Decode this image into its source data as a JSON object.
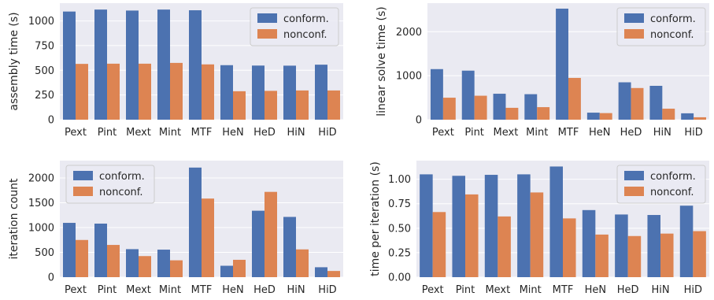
{
  "colors": {
    "conform": "#4c72b0",
    "nonconf": "#dd8452",
    "panel_bg": "#eaeaf2",
    "grid": "#ffffff",
    "legend_border": "#cccccc"
  },
  "chart_data": [
    {
      "type": "bar",
      "ylabel": "assembly time (s)",
      "categories": [
        "Pext",
        "Pint",
        "Mext",
        "Mint",
        "MTF",
        "HeN",
        "HeD",
        "HiN",
        "HiD"
      ],
      "ylim": [
        0,
        1180
      ],
      "yticks": [
        0,
        250,
        500,
        750,
        1000
      ],
      "ytick_labels": [
        "0",
        "250",
        "500",
        "750",
        "1000"
      ],
      "grid": true,
      "legend_placement": "top-right",
      "series": [
        {
          "name": "conform.",
          "values": [
            1095,
            1115,
            1105,
            1115,
            1108,
            552,
            548,
            547,
            557
          ]
        },
        {
          "name": "nonconf.",
          "values": [
            565,
            567,
            567,
            575,
            560,
            288,
            292,
            296,
            296
          ]
        }
      ]
    },
    {
      "type": "bar",
      "ylabel": "linear solve time (s)",
      "categories": [
        "Pext",
        "Pint",
        "Mext",
        "Mint",
        "MTF",
        "HeN",
        "HeD",
        "HiN",
        "HiD"
      ],
      "ylim": [
        0,
        2650
      ],
      "yticks": [
        0,
        1000,
        2000
      ],
      "ytick_labels": [
        "0",
        "1000",
        "2000"
      ],
      "grid": true,
      "legend_placement": "top-right",
      "series": [
        {
          "name": "conform.",
          "values": [
            1150,
            1115,
            590,
            580,
            2525,
            160,
            850,
            770,
            145
          ]
        },
        {
          "name": "nonconf.",
          "values": [
            500,
            545,
            270,
            285,
            950,
            150,
            720,
            250,
            55
          ]
        }
      ]
    },
    {
      "type": "bar",
      "ylabel": "iteration count",
      "categories": [
        "Pext",
        "Pint",
        "Mext",
        "Mint",
        "MTF",
        "HeN",
        "HeD",
        "HiN",
        "HiD"
      ],
      "ylim": [
        0,
        2350
      ],
      "yticks": [
        0,
        500,
        1000,
        1500,
        2000
      ],
      "ytick_labels": [
        "0",
        "500",
        "1000",
        "1500",
        "2000"
      ],
      "grid": true,
      "legend_placement": "top-left",
      "series": [
        {
          "name": "conform.",
          "values": [
            1095,
            1080,
            565,
            555,
            2210,
            230,
            1340,
            1215,
            200
          ]
        },
        {
          "name": "nonconf.",
          "values": [
            750,
            650,
            425,
            340,
            1585,
            350,
            1720,
            560,
            125
          ]
        }
      ]
    },
    {
      "type": "bar",
      "ylabel": "time per iteration (s)",
      "categories": [
        "Pext",
        "Pint",
        "Mext",
        "Mint",
        "MTF",
        "HeN",
        "HeD",
        "HiN",
        "HiD"
      ],
      "ylim": [
        0,
        1.19
      ],
      "yticks": [
        0,
        0.25,
        0.5,
        0.75,
        1.0
      ],
      "ytick_labels": [
        "0.00",
        "0.25",
        "0.50",
        "0.75",
        "1.00"
      ],
      "grid": true,
      "legend_placement": "top-right",
      "series": [
        {
          "name": "conform.",
          "values": [
            1.05,
            1.035,
            1.045,
            1.05,
            1.13,
            0.685,
            0.64,
            0.635,
            0.73
          ]
        },
        {
          "name": "nonconf.",
          "values": [
            0.665,
            0.845,
            0.62,
            0.865,
            0.6,
            0.435,
            0.42,
            0.445,
            0.47
          ]
        }
      ]
    }
  ]
}
